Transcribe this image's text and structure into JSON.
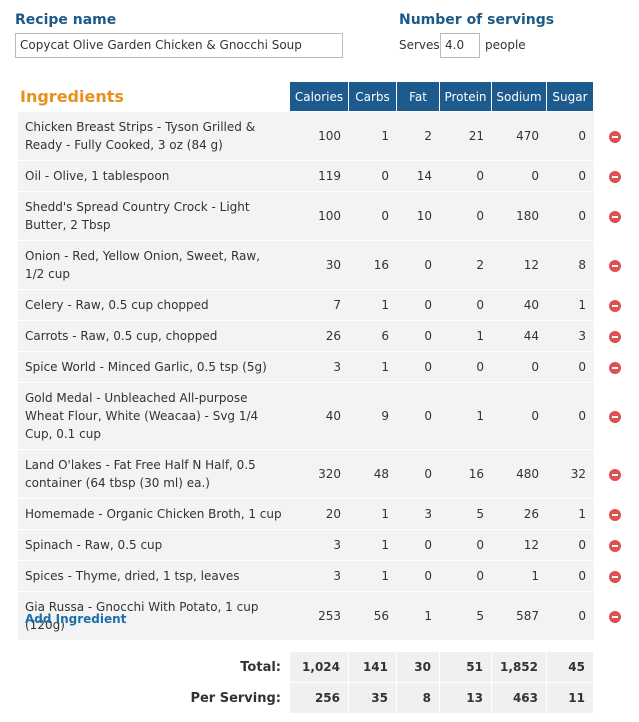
{
  "recipe": {
    "label": "Recipe name",
    "name": "Copycat Olive Garden Chicken & Gnocchi Soup"
  },
  "servings": {
    "label": "Number of servings",
    "prefix": "Serves",
    "value": "4.0",
    "suffix": "people"
  },
  "ingredients": {
    "title": "Ingredients",
    "columns": [
      "Calories",
      "Carbs",
      "Fat",
      "Protein",
      "Sodium",
      "Sugar"
    ],
    "rows": [
      [
        "Chicken Breast Strips - Tyson Grilled & Ready - Fully Cooked, 3 oz (84 g)",
        100,
        1,
        2,
        21,
        470,
        0
      ],
      [
        "Oil - Olive, 1 tablespoon",
        119,
        0,
        14,
        0,
        0,
        0
      ],
      [
        "Shedd's Spread Country Crock - Light Butter, 2 Tbsp",
        100,
        0,
        10,
        0,
        180,
        0
      ],
      [
        "Onion - Red, Yellow Onion, Sweet, Raw, 1/2 cup",
        30,
        16,
        0,
        2,
        12,
        8
      ],
      [
        "Celery - Raw, 0.5 cup chopped",
        7,
        1,
        0,
        0,
        40,
        1
      ],
      [
        "Carrots - Raw, 0.5 cup, chopped",
        26,
        6,
        0,
        1,
        44,
        3
      ],
      [
        "Spice World - Minced Garlic, 0.5 tsp (5g)",
        3,
        1,
        0,
        0,
        0,
        0
      ],
      [
        "Gold Medal - Unbleached All-purpose Wheat Flour, White (Weacaa) - Svg 1/4 Cup, 0.1 cup",
        40,
        9,
        0,
        1,
        0,
        0
      ],
      [
        "Land O'lakes - Fat Free Half N Half, 0.5 container (64 tbsp (30 ml) ea.)",
        320,
        48,
        0,
        16,
        480,
        32
      ],
      [
        "Homemade - Organic Chicken Broth, 1 cup",
        20,
        1,
        3,
        5,
        26,
        1
      ],
      [
        "Spinach - Raw, 0.5 cup",
        3,
        1,
        0,
        0,
        12,
        0
      ],
      [
        "Spices - Thyme, dried, 1 tsp, leaves",
        3,
        1,
        0,
        0,
        1,
        0
      ],
      [
        "Gia Russa - Gnocchi With Potato, 1 cup (120g)",
        253,
        56,
        1,
        5,
        587,
        0
      ]
    ],
    "add": "Add Ingredient"
  },
  "totals": {
    "rows": [
      [
        "Total:",
        "1,024",
        141,
        30,
        51,
        "1,852",
        45
      ],
      [
        "Per Serving:",
        256,
        35,
        8,
        13,
        463,
        11
      ]
    ]
  }
}
